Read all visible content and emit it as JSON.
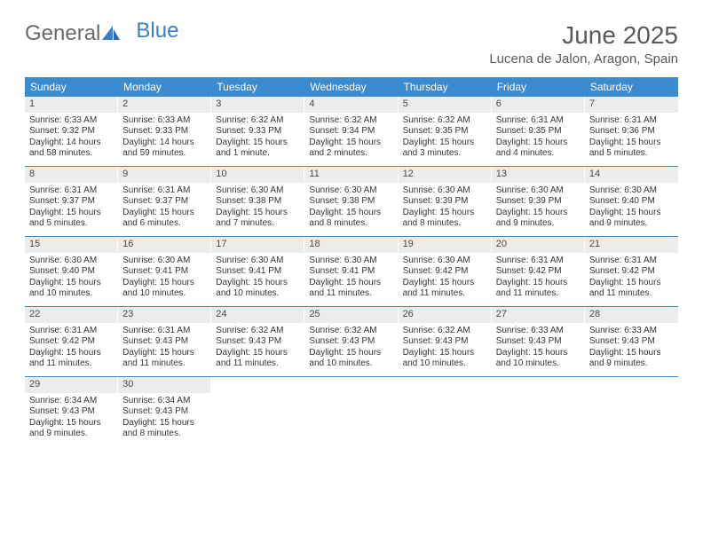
{
  "logo": {
    "text_gray": "General",
    "text_blue": "Blue"
  },
  "title": "June 2025",
  "subtitle": "Lucena de Jalon, Aragon, Spain",
  "colors": {
    "header_blue": "#3b8bd0",
    "daynum_bg": "#ececec",
    "rule": "#3b8bd0",
    "logo_blue": "#3b7fc4",
    "logo_gray": "#6a6a6a",
    "text": "#353535"
  },
  "weekdays": [
    "Sunday",
    "Monday",
    "Tuesday",
    "Wednesday",
    "Thursday",
    "Friday",
    "Saturday"
  ],
  "weeks": [
    [
      {
        "n": "1",
        "sr": "6:33 AM",
        "ss": "9:32 PM",
        "dl": "14 hours and 58 minutes."
      },
      {
        "n": "2",
        "sr": "6:33 AM",
        "ss": "9:33 PM",
        "dl": "14 hours and 59 minutes."
      },
      {
        "n": "3",
        "sr": "6:32 AM",
        "ss": "9:33 PM",
        "dl": "15 hours and 1 minute."
      },
      {
        "n": "4",
        "sr": "6:32 AM",
        "ss": "9:34 PM",
        "dl": "15 hours and 2 minutes."
      },
      {
        "n": "5",
        "sr": "6:32 AM",
        "ss": "9:35 PM",
        "dl": "15 hours and 3 minutes."
      },
      {
        "n": "6",
        "sr": "6:31 AM",
        "ss": "9:35 PM",
        "dl": "15 hours and 4 minutes."
      },
      {
        "n": "7",
        "sr": "6:31 AM",
        "ss": "9:36 PM",
        "dl": "15 hours and 5 minutes."
      }
    ],
    [
      {
        "n": "8",
        "sr": "6:31 AM",
        "ss": "9:37 PM",
        "dl": "15 hours and 5 minutes."
      },
      {
        "n": "9",
        "sr": "6:31 AM",
        "ss": "9:37 PM",
        "dl": "15 hours and 6 minutes."
      },
      {
        "n": "10",
        "sr": "6:30 AM",
        "ss": "9:38 PM",
        "dl": "15 hours and 7 minutes."
      },
      {
        "n": "11",
        "sr": "6:30 AM",
        "ss": "9:38 PM",
        "dl": "15 hours and 8 minutes."
      },
      {
        "n": "12",
        "sr": "6:30 AM",
        "ss": "9:39 PM",
        "dl": "15 hours and 8 minutes."
      },
      {
        "n": "13",
        "sr": "6:30 AM",
        "ss": "9:39 PM",
        "dl": "15 hours and 9 minutes."
      },
      {
        "n": "14",
        "sr": "6:30 AM",
        "ss": "9:40 PM",
        "dl": "15 hours and 9 minutes."
      }
    ],
    [
      {
        "n": "15",
        "sr": "6:30 AM",
        "ss": "9:40 PM",
        "dl": "15 hours and 10 minutes."
      },
      {
        "n": "16",
        "sr": "6:30 AM",
        "ss": "9:41 PM",
        "dl": "15 hours and 10 minutes."
      },
      {
        "n": "17",
        "sr": "6:30 AM",
        "ss": "9:41 PM",
        "dl": "15 hours and 10 minutes."
      },
      {
        "n": "18",
        "sr": "6:30 AM",
        "ss": "9:41 PM",
        "dl": "15 hours and 11 minutes."
      },
      {
        "n": "19",
        "sr": "6:30 AM",
        "ss": "9:42 PM",
        "dl": "15 hours and 11 minutes."
      },
      {
        "n": "20",
        "sr": "6:31 AM",
        "ss": "9:42 PM",
        "dl": "15 hours and 11 minutes."
      },
      {
        "n": "21",
        "sr": "6:31 AM",
        "ss": "9:42 PM",
        "dl": "15 hours and 11 minutes."
      }
    ],
    [
      {
        "n": "22",
        "sr": "6:31 AM",
        "ss": "9:42 PM",
        "dl": "15 hours and 11 minutes."
      },
      {
        "n": "23",
        "sr": "6:31 AM",
        "ss": "9:43 PM",
        "dl": "15 hours and 11 minutes."
      },
      {
        "n": "24",
        "sr": "6:32 AM",
        "ss": "9:43 PM",
        "dl": "15 hours and 11 minutes."
      },
      {
        "n": "25",
        "sr": "6:32 AM",
        "ss": "9:43 PM",
        "dl": "15 hours and 10 minutes."
      },
      {
        "n": "26",
        "sr": "6:32 AM",
        "ss": "9:43 PM",
        "dl": "15 hours and 10 minutes."
      },
      {
        "n": "27",
        "sr": "6:33 AM",
        "ss": "9:43 PM",
        "dl": "15 hours and 10 minutes."
      },
      {
        "n": "28",
        "sr": "6:33 AM",
        "ss": "9:43 PM",
        "dl": "15 hours and 9 minutes."
      }
    ],
    [
      {
        "n": "29",
        "sr": "6:34 AM",
        "ss": "9:43 PM",
        "dl": "15 hours and 9 minutes."
      },
      {
        "n": "30",
        "sr": "6:34 AM",
        "ss": "9:43 PM",
        "dl": "15 hours and 8 minutes."
      },
      null,
      null,
      null,
      null,
      null
    ]
  ],
  "labels": {
    "sunrise": "Sunrise:",
    "sunset": "Sunset:",
    "daylight": "Daylight:"
  }
}
